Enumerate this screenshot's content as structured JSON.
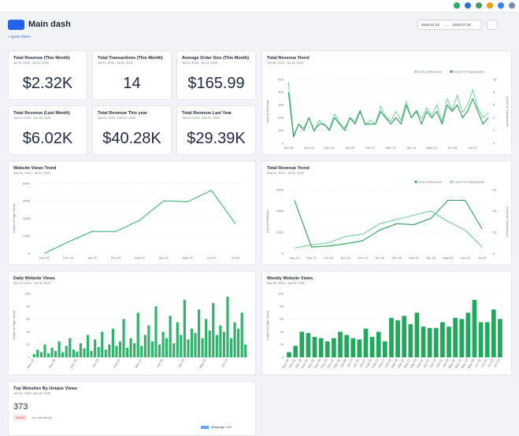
{
  "header": {
    "title": "Main dash",
    "quick_filters": "+ Quick Filters",
    "date_start": "2025-01-01",
    "date_end": "2025-07-18"
  },
  "kpis": [
    {
      "title": "Total Revenue (This Month)",
      "subtitle": "Jul 01, 2025 - Jul 31, 2025",
      "value": "$2.32K"
    },
    {
      "title": "Total Transactions (This Month)",
      "subtitle": "Jul 01, 2025 - Jul 31, 2025",
      "value": "14"
    },
    {
      "title": "Average Order Size (This Month)",
      "subtitle": "Jul 01, 2025 - Jul 31, 2025",
      "value": "$165.99"
    },
    {
      "title": "Total Revenue (Last Month)",
      "subtitle": "Jun 01, 2025 - Jun 30, 2025",
      "value": "$6.02K"
    },
    {
      "title": "Total Revenue This year",
      "subtitle": "Jan 01, 2025 - Dec 31, 2025",
      "value": "$40.28K"
    },
    {
      "title": "Total Revenue Last Year",
      "subtitle": "Jan 01, 2024 - Dec 31, 2024",
      "value": "$29.39K"
    }
  ],
  "charts": [
    {
      "type": "line",
      "title": "Total Revenue Trend",
      "subtitle": "Oct 28, 2024 - Jul 18, 2025",
      "categories": [
        "Oct 28",
        null,
        null,
        null,
        "Nov 25",
        null,
        null,
        null,
        "Dec 23",
        null,
        null,
        null,
        "Jan 20",
        null,
        null,
        null,
        "Feb 17",
        null,
        null,
        null,
        "Mar 17",
        null,
        null,
        null,
        "Apr 14",
        null,
        null,
        null,
        "May 12",
        null,
        null,
        null,
        "Jun 09",
        null,
        null,
        null,
        "Jul 07",
        null,
        null,
        null
      ],
      "series": [
        {
          "name": "Sum of Revenue",
          "color": "#7fd6a2",
          "values": [
            480,
            60,
            150,
            120,
            200,
            90,
            180,
            140,
            110,
            230,
            160,
            120,
            200,
            170,
            260,
            140,
            180,
            150,
            290,
            210,
            170,
            250,
            180,
            330,
            200,
            260,
            190,
            280,
            220,
            300,
            170,
            350,
            260,
            380,
            240,
            300,
            420,
            280,
            200,
            240
          ]
        },
        {
          "name": "Count of Transactions",
          "color": "#2a9d5c",
          "axis": "y2",
          "values": [
            8,
            1,
            3,
            2,
            4,
            2,
            3,
            3,
            2,
            4,
            3,
            2,
            4,
            3,
            5,
            3,
            3,
            3,
            5,
            4,
            3,
            4,
            3,
            6,
            4,
            5,
            3,
            5,
            4,
            5,
            3,
            6,
            5,
            6,
            4,
            5,
            7,
            5,
            3,
            4
          ]
        }
      ],
      "ylim": [
        0,
        500
      ],
      "yticks": [
        0,
        100,
        200,
        300,
        400,
        500
      ],
      "y2lim": [
        0,
        10
      ],
      "y2ticks": [
        0,
        2,
        4,
        6,
        8,
        10
      ],
      "ylabel": "Sum of Revenue",
      "y2label": "Count of Transactions",
      "grid": true
    },
    {
      "type": "line",
      "title": "Website Views Trend",
      "subtitle": "Nov 01, 2024 - Jul 31, 2025",
      "categories": [
        "Nov 24",
        "Dec 24",
        "Jan 25",
        "Feb 25",
        "Mar 25",
        "Apr 25",
        "May 25",
        "Jun 25",
        "Jul 25"
      ],
      "values": [
        0,
        1300,
        2500,
        2500,
        3800,
        6000,
        5900,
        7200,
        3400
      ],
      "color": "#3cb371",
      "ylim": [
        0,
        8000
      ],
      "yticks": [
        0,
        2000,
        4000,
        6000,
        8000
      ],
      "ylabel": "Count of Page Views",
      "grid": true
    },
    {
      "type": "line",
      "title": "Total Revenue Trend",
      "subtitle": "Aug 01, 2024 - Jul 31, 2025",
      "categories": [
        "Aug 24",
        "Sep 24",
        "Oct 24",
        "Nov 24",
        "Dec 24",
        "Jan 25",
        "Feb 25",
        "Mar 25",
        "Apr 25",
        "May 25",
        "Jun 25",
        "Jul 25"
      ],
      "series": [
        {
          "name": "Sum of Revenue",
          "color": "#2e9e5b",
          "values": [
            5000,
            600,
            700,
            900,
            1200,
            2200,
            2800,
            2700,
            3300,
            5000,
            5000,
            2300
          ]
        },
        {
          "name": "Count of Transactions",
          "color": "#6fcf97",
          "axis": "y2",
          "values": [
            5,
            8,
            10,
            16,
            18,
            28,
            32,
            36,
            40,
            30,
            22,
            6
          ]
        }
      ],
      "ylim": [
        0,
        6000
      ],
      "yticks": [
        0,
        2000,
        4000,
        6000
      ],
      "y2lim": [
        0,
        60
      ],
      "y2ticks": [
        0,
        20,
        40,
        60
      ],
      "ylabel": "Sum of Revenue",
      "y2label": "Count of Transactions",
      "grid": true
    },
    {
      "type": "bar",
      "title": "Daily Website Views",
      "subtitle": "Nov 12, 2024 - Jul 18, 2025",
      "categories": [
        "Nov 12",
        null,
        null,
        null,
        null,
        null,
        "Dec 06",
        null,
        null,
        null,
        null,
        null,
        "Dec 30",
        null,
        null,
        null,
        null,
        null,
        "Jan 23",
        null,
        null,
        null,
        null,
        null,
        "Feb 16",
        null,
        null,
        null,
        null,
        null,
        "Mar 12",
        null,
        null,
        null,
        null,
        null,
        "Apr 05",
        null,
        null,
        null,
        null,
        null,
        "Apr 29",
        null,
        null,
        null,
        null,
        null,
        "May 23",
        null,
        null,
        null,
        null,
        null,
        "Jun 16",
        null,
        null,
        null,
        null,
        null
      ],
      "values": [
        5,
        12,
        8,
        20,
        6,
        15,
        10,
        25,
        8,
        18,
        30,
        12,
        9,
        22,
        14,
        35,
        10,
        28,
        16,
        40,
        12,
        20,
        45,
        18,
        25,
        60,
        15,
        30,
        22,
        70,
        18,
        35,
        50,
        25,
        80,
        20,
        40,
        30,
        65,
        22,
        55,
        35,
        90,
        28,
        45,
        38,
        75,
        30,
        60,
        42,
        85,
        35,
        50,
        40,
        95,
        30,
        55,
        45,
        70,
        20
      ],
      "color": "#2fb36b",
      "ylim": [
        0,
        100
      ],
      "yticks": [
        0,
        20,
        40,
        60,
        80,
        100
      ],
      "ylabel": "Count of Page Views",
      "grid": true
    },
    {
      "type": "bar",
      "title": "Weekly Website Views",
      "subtitle": "Nov 04, 2024 - Jun 29, 2025",
      "categories": [
        "Nov 04",
        "Nov 11",
        "Nov 18",
        "Nov 25",
        "Dec 02",
        "Dec 09",
        "Dec 16",
        "Dec 23",
        "Dec 30",
        "Jan 06",
        "Jan 13",
        "Jan 20",
        "Jan 27",
        "Feb 03",
        "Feb 10",
        "Feb 17",
        "Feb 24",
        "Mar 03",
        "Mar 10",
        "Mar 17",
        "Mar 24",
        "Mar 31",
        "Apr 07",
        "Apr 14",
        "Apr 21",
        "Apr 28",
        "May 05",
        "May 12",
        "May 19",
        "May 26",
        "Jun 02",
        "Jun 09",
        "Jun 16",
        "Jun 23"
      ],
      "values": [
        8,
        18,
        40,
        38,
        32,
        30,
        25,
        30,
        40,
        35,
        30,
        28,
        45,
        32,
        40,
        25,
        62,
        58,
        65,
        52,
        70,
        48,
        46,
        46,
        55,
        48,
        62,
        60,
        70,
        90,
        55,
        55,
        75,
        60
      ],
      "color": "#22a85c",
      "ylim": [
        0,
        100
      ],
      "yticks": [
        0,
        20,
        40,
        60,
        80,
        100
      ],
      "ylabel": "Count of Page Views",
      "grid": true
    }
  ],
  "top_websites": {
    "title": "Top Websites By Unique Views",
    "subtitle": "Jun 01, 2025 - Jun 30, 2025",
    "value": "373",
    "change": "10.5%",
    "comparison": "vs Last Month",
    "legend": "Webpage: 142"
  }
}
